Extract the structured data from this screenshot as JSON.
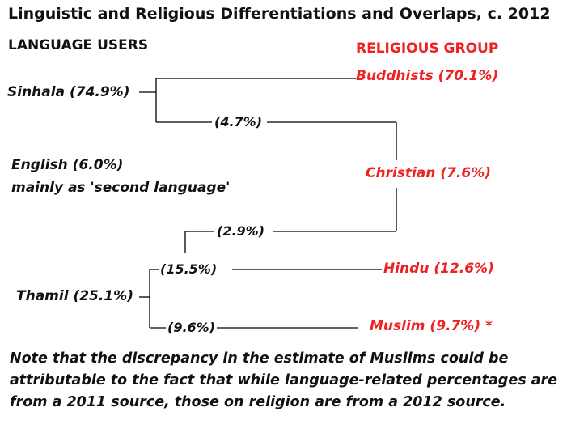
{
  "title": "Linguistic and Religious Differentiations and Overlaps, c. 2012",
  "header_left": "LANGUAGE USERS",
  "header_right": "RELIGIOUS GROUP",
  "languages": {
    "sinhala": "Sinhala (74.9%)",
    "english_line1": "English (6.0%)",
    "english_line2": "mainly as 'second language'",
    "thamil": "Thamil (25.1%)"
  },
  "religions": {
    "buddhists": "Buddhists  (70.1%)",
    "christian": "Christian  (7.6%)",
    "hindu": "Hindu (12.6%)",
    "muslim": "Muslim  (9.7%) *"
  },
  "overlaps": {
    "sinhala_christian": "(4.7%)",
    "thamil_christian": "(2.9%)",
    "thamil_hindu": "(15.5%)",
    "thamil_muslim": "(9.6%)"
  },
  "note": "Note that the discrepancy in the estimate of Muslims could be attributable to the fact that while language-related percentages are from a 2011 source, those on religion are from a 2012 source.",
  "colors": {
    "religion": "#ee2222",
    "text": "#111111",
    "line": "#000000"
  }
}
